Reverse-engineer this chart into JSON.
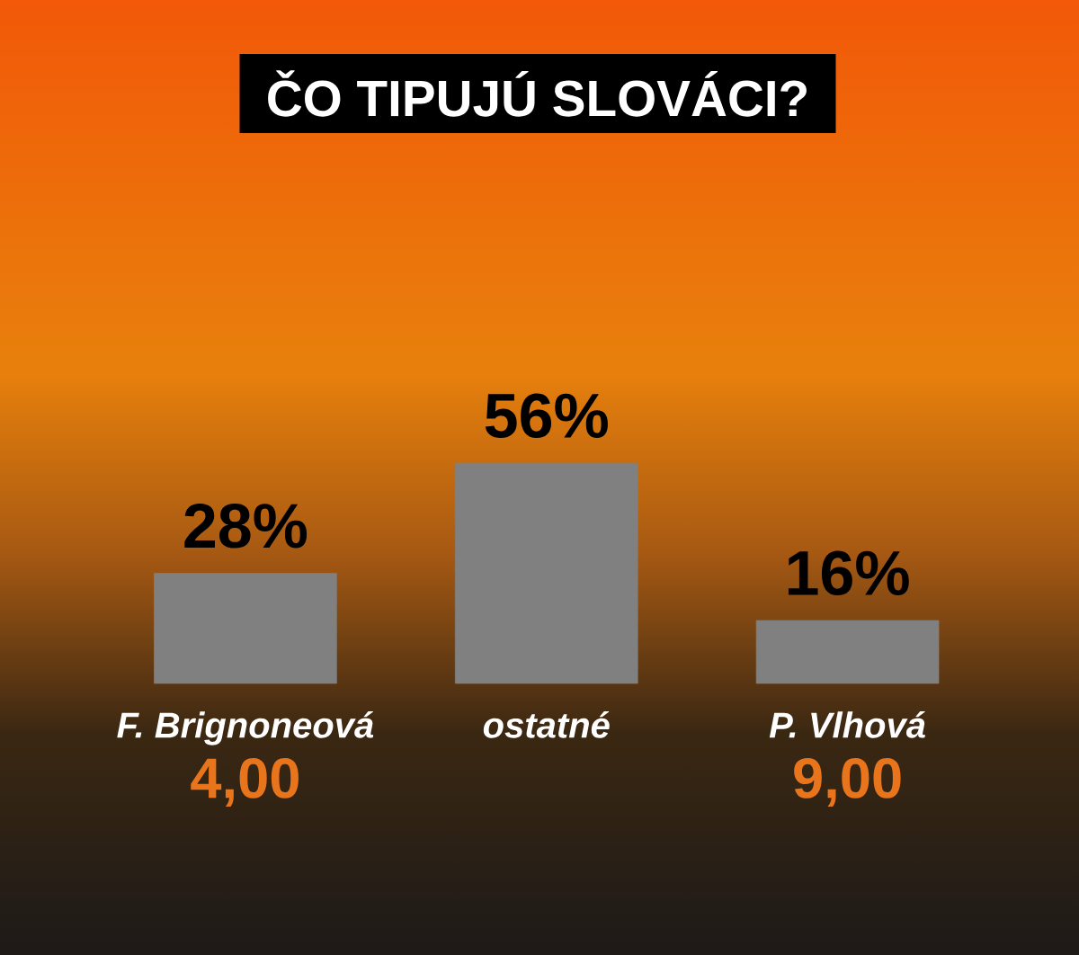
{
  "chart_data": {
    "type": "bar",
    "title": "ČO TIPUJÚ SLOVÁCI?",
    "categories": [
      "F. Brignoneová",
      "ostatné",
      "P. Vlhová"
    ],
    "values": [
      28,
      56,
      16
    ],
    "value_labels": [
      "28%",
      "56%",
      "16%"
    ],
    "color": "#808080",
    "annotations": [
      "4,00",
      "9,00"
    ]
  }
}
